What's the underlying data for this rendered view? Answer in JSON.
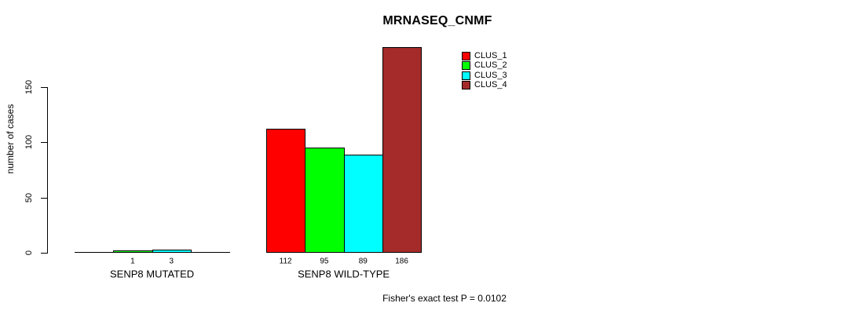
{
  "chart_data": {
    "type": "bar",
    "title": "MRNASEQ_CNMF",
    "ylabel": "number of cases",
    "xlabel": "",
    "ylim": [
      0,
      190
    ],
    "yticks": [
      0,
      50,
      100,
      150
    ],
    "grid": false,
    "legend_position": "top-right",
    "categories": [
      "SENP8 MUTATED",
      "SENP8 WILD-TYPE"
    ],
    "series": [
      {
        "name": "CLUS_1",
        "color": "#ff0000",
        "values": [
          0,
          112
        ]
      },
      {
        "name": "CLUS_2",
        "color": "#00ff00",
        "values": [
          1,
          95
        ]
      },
      {
        "name": "CLUS_3",
        "color": "#00ffff",
        "values": [
          3,
          89
        ]
      },
      {
        "name": "CLUS_4",
        "color": "#a52a2a",
        "values": [
          0,
          186
        ]
      }
    ],
    "bar_value_labels": [
      [
        "",
        "1",
        "3",
        ""
      ],
      [
        "112",
        "95",
        "89",
        "186"
      ]
    ],
    "annotation": "Fisher's exact test P = 0.0102"
  }
}
